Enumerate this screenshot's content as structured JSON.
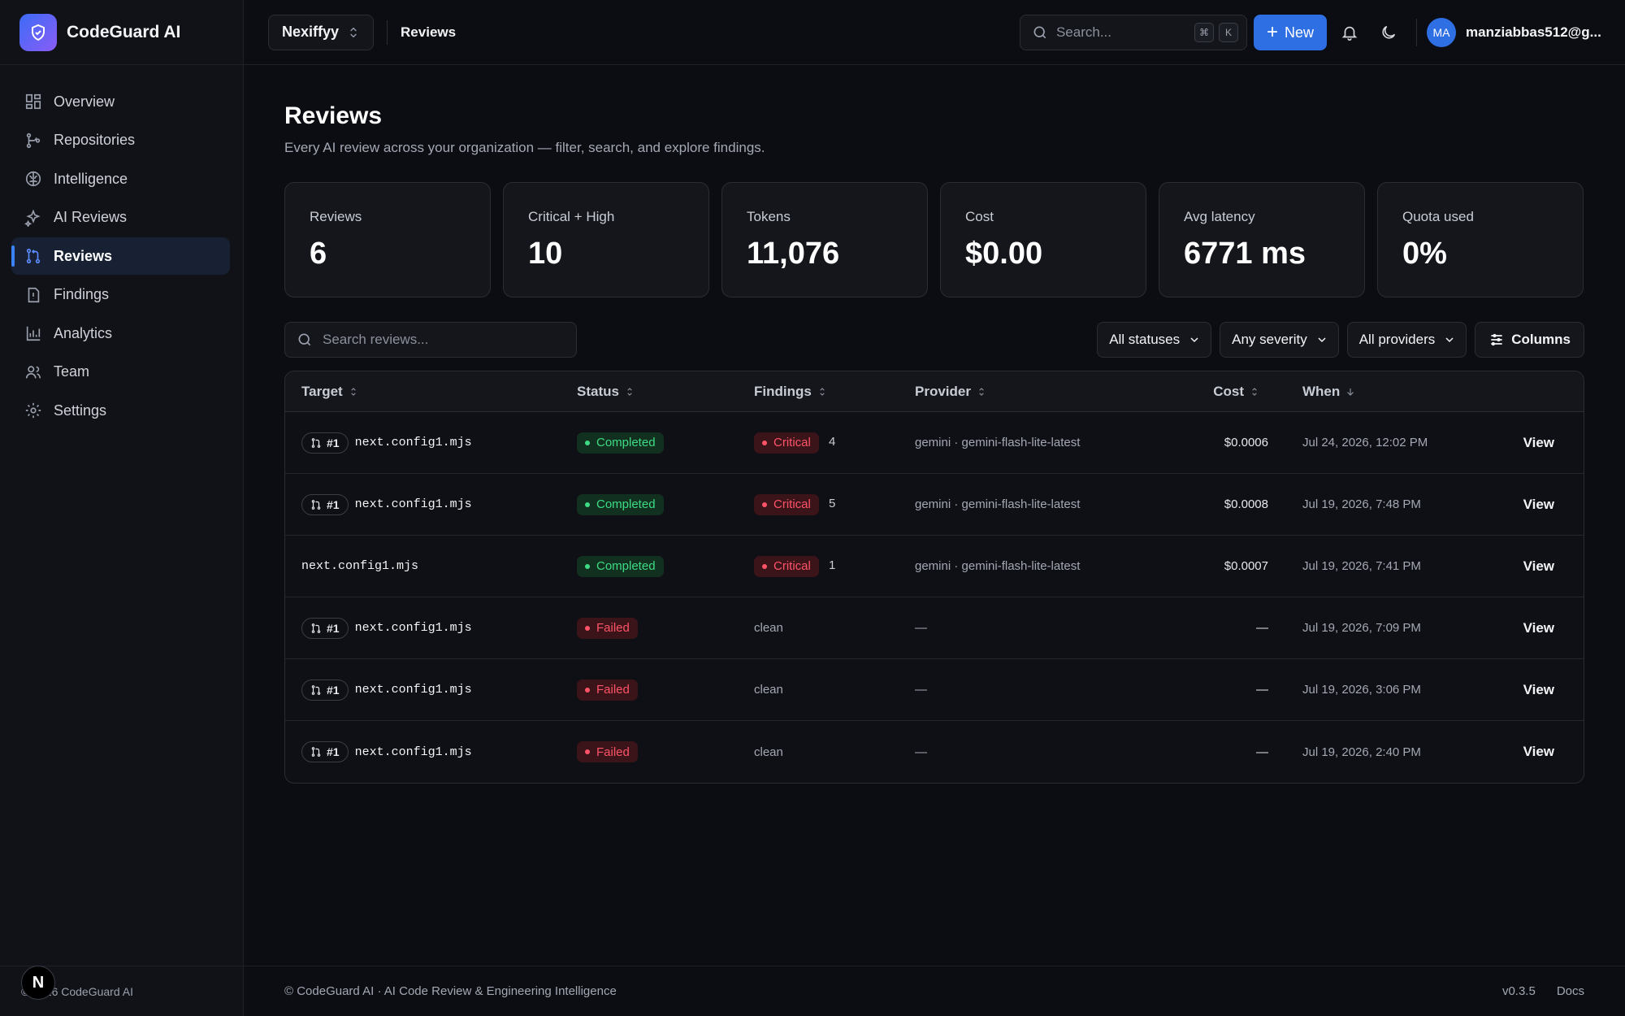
{
  "app": {
    "name": "CodeGuard AI"
  },
  "sidebar": {
    "items": [
      {
        "label": "Overview",
        "icon": "layout-grid-icon"
      },
      {
        "label": "Repositories",
        "icon": "git-branch-icon"
      },
      {
        "label": "Intelligence",
        "icon": "brain-icon"
      },
      {
        "label": "AI Reviews",
        "icon": "sparkles-icon"
      },
      {
        "label": "Reviews",
        "icon": "git-pull-request-icon",
        "active": true
      },
      {
        "label": "Findings",
        "icon": "file-alert-icon"
      },
      {
        "label": "Analytics",
        "icon": "bar-chart-icon"
      },
      {
        "label": "Team",
        "icon": "users-icon"
      },
      {
        "label": "Settings",
        "icon": "gear-icon"
      }
    ],
    "footer": "© 2026 CodeGuard AI",
    "badge": "N"
  },
  "header": {
    "org": "Nexiffyy",
    "breadcrumb": "Reviews",
    "search_placeholder": "Search...",
    "kbd_cmd": "⌘",
    "kbd_k": "K",
    "new_label": "New",
    "avatar_initials": "MA",
    "user_email": "manziabbas512@g..."
  },
  "page": {
    "title": "Reviews",
    "subtitle": "Every AI review across your organization — filter, search, and explore findings."
  },
  "stats": [
    {
      "label": "Reviews",
      "value": "6"
    },
    {
      "label": "Critical + High",
      "value": "10"
    },
    {
      "label": "Tokens",
      "value": "11,076"
    },
    {
      "label": "Cost",
      "value": "$0.00"
    },
    {
      "label": "Avg latency",
      "value": "6771 ms"
    },
    {
      "label": "Quota used",
      "value": "0%"
    }
  ],
  "filters": {
    "search_placeholder": "Search reviews...",
    "status": "All statuses",
    "severity": "Any severity",
    "provider": "All providers",
    "columns_label": "Columns"
  },
  "table": {
    "headers": {
      "target": "Target",
      "status": "Status",
      "findings": "Findings",
      "provider": "Provider",
      "cost": "Cost",
      "when": "When"
    },
    "rows": [
      {
        "pr": "#1",
        "file": "next.config1.mjs",
        "status": "Completed",
        "severity": "Critical",
        "count": "4",
        "provider": "gemini · gemini-flash-lite-latest",
        "cost": "$0.0006",
        "when": "Jul 24, 2026, 12:02 PM",
        "action": "View"
      },
      {
        "pr": "#1",
        "file": "next.config1.mjs",
        "status": "Completed",
        "severity": "Critical",
        "count": "5",
        "provider": "gemini · gemini-flash-lite-latest",
        "cost": "$0.0008",
        "when": "Jul 19, 2026, 7:48 PM",
        "action": "View"
      },
      {
        "pr": "",
        "file": "next.config1.mjs",
        "status": "Completed",
        "severity": "Critical",
        "count": "1",
        "provider": "gemini · gemini-flash-lite-latest",
        "cost": "$0.0007",
        "when": "Jul 19, 2026, 7:41 PM",
        "action": "View"
      },
      {
        "pr": "#1",
        "file": "next.config1.mjs",
        "status": "Failed",
        "findings_text": "clean",
        "provider": "—",
        "cost": "—",
        "when": "Jul 19, 2026, 7:09 PM",
        "action": "View"
      },
      {
        "pr": "#1",
        "file": "next.config1.mjs",
        "status": "Failed",
        "findings_text": "clean",
        "provider": "—",
        "cost": "—",
        "when": "Jul 19, 2026, 3:06 PM",
        "action": "View"
      },
      {
        "pr": "#1",
        "file": "next.config1.mjs",
        "status": "Failed",
        "findings_text": "clean",
        "provider": "—",
        "cost": "—",
        "when": "Jul 19, 2026, 2:40 PM",
        "action": "View"
      }
    ]
  },
  "footer": {
    "left": "© CodeGuard AI · AI Code Review & Engineering Intelligence",
    "version": "v0.3.5",
    "docs": "Docs"
  },
  "colors": {
    "accent": "#2f6fe4",
    "completed": "#3ddc84",
    "failed": "#ff5468",
    "background": "#0c0d12"
  }
}
